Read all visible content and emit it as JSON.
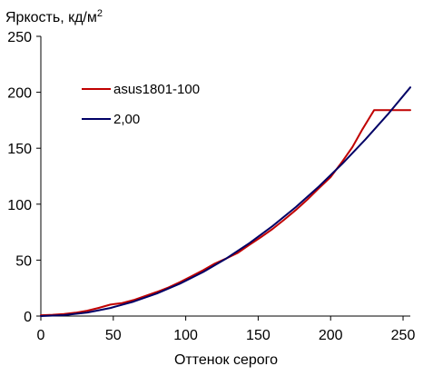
{
  "chart_data": {
    "type": "line",
    "title": "",
    "xlabel": "Оттенок серого",
    "ylabel": "Яркость, кд/м",
    "ylabel_superscript": "2",
    "xlim": [
      0,
      255
    ],
    "ylim": [
      0,
      250
    ],
    "x_ticks": [
      "0",
      "50",
      "100",
      "150",
      "200",
      "250"
    ],
    "y_ticks": [
      "0",
      "50",
      "100",
      "150",
      "200",
      "250"
    ],
    "grid": false,
    "legend_position": "upper-left",
    "series": [
      {
        "name": "asus1801-100",
        "color": "#c00000",
        "x": [
          0,
          8,
          16,
          24,
          32,
          40,
          48,
          56,
          64,
          72,
          80,
          88,
          96,
          104,
          112,
          120,
          128,
          136,
          144,
          152,
          160,
          168,
          176,
          184,
          192,
          200,
          208,
          215,
          222,
          230,
          240,
          255
        ],
        "y": [
          0.7,
          1.1,
          1.8,
          3.0,
          4.8,
          7.3,
          10.2,
          11.6,
          14.3,
          17.9,
          21.5,
          25.6,
          30.3,
          35.6,
          41.0,
          46.8,
          51.5,
          56.6,
          63.6,
          70.6,
          77.9,
          86.1,
          94.8,
          104.2,
          114.3,
          124.2,
          138.0,
          151.0,
          167.0,
          184.0,
          184.0,
          184.0
        ]
      },
      {
        "name": "2,00",
        "color": "#000066",
        "x": [
          0,
          16,
          32,
          48,
          64,
          80,
          96,
          112,
          128,
          144,
          160,
          176,
          192,
          208,
          224,
          240,
          255
        ],
        "y": [
          0.0,
          0.8,
          3.2,
          7.2,
          12.9,
          20.1,
          29.0,
          39.4,
          51.5,
          65.2,
          80.5,
          97.4,
          115.9,
          136.0,
          157.8,
          181.1,
          204.4
        ]
      }
    ]
  }
}
